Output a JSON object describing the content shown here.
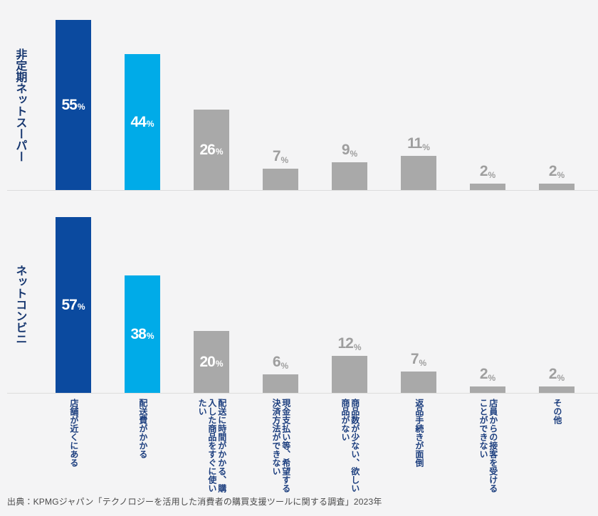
{
  "page": {
    "background": "#f4f4f5",
    "source": "出典：KPMGジャパン「テクノロジーを活用した消費者の購買支援ツールに関する調査」2023年"
  },
  "colors": {
    "bar_primary": "#0b4a9f",
    "bar_secondary": "#00abe8",
    "bar_gray": "#a9a9a9",
    "label_inside": "#ffffff",
    "label_outside": "#9e9e9e",
    "text_navy": "#16366f",
    "category_navy": "#1d3f7f",
    "baseline": "#dcdcdc",
    "source_text": "#4a4a4a"
  },
  "chart_data": {
    "type": "bar",
    "unit": "%",
    "grid": false,
    "legend_position": "none",
    "value_labels": true,
    "inside_label_min": 20,
    "bar_colors": [
      "#0b4a9f",
      "#00abe8",
      "#a9a9a9"
    ],
    "categories": [
      "店舗が近くにある",
      "配送費がかかる",
      "配送に時間がかかる、購入した商品をすぐに使いたい",
      "現金支払い等、希望する決済方法ができない",
      "商品数が少ない、欲しい商品がない",
      "返品手続きが面倒",
      "店員からの接客を受けることができない",
      "その他"
    ],
    "series": [
      {
        "name": "非定期ネットスーパー",
        "values": [
          55,
          44,
          26,
          7,
          9,
          11,
          2,
          2
        ]
      },
      {
        "name": "ネットコンビニ",
        "values": [
          57,
          38,
          20,
          6,
          12,
          7,
          2,
          2
        ]
      }
    ],
    "ylim": [
      0,
      60
    ]
  }
}
